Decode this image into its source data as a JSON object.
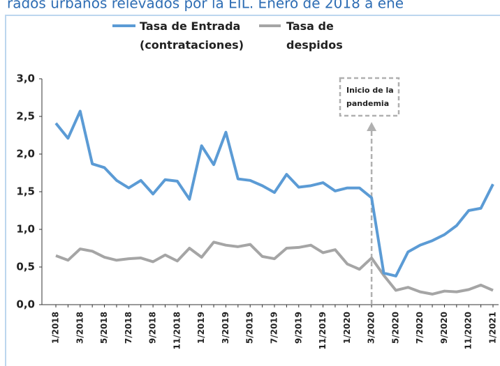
{
  "chart_data": {
    "type": "line",
    "title": "rados urbanos relevados por la EIL. Enero de 2018 a ene",
    "annotation": "Inicio de la pandemia",
    "categories": [
      "1/2018",
      null,
      "3/2018",
      null,
      "5/2018",
      null,
      "7/2018",
      null,
      "9/2018",
      null,
      "11/2018",
      null,
      "1/2019",
      null,
      "3/2019",
      null,
      "5/2019",
      null,
      "7/2019",
      null,
      "9/2019",
      null,
      "11/2019",
      null,
      "1/2020",
      null,
      "3/2020",
      null,
      "5/2020",
      null,
      "7/2020",
      null,
      "9/2020",
      null,
      "11/2020",
      null,
      "1/2021"
    ],
    "series": [
      {
        "name": "Tasa de Entrada (contrataciones)",
        "color": "#5b9bd5",
        "values": [
          2.41,
          2.21,
          2.57,
          1.87,
          1.82,
          1.65,
          1.55,
          1.65,
          1.47,
          1.66,
          1.64,
          1.4,
          2.11,
          1.86,
          2.29,
          1.67,
          1.65,
          1.58,
          1.49,
          1.73,
          1.56,
          1.58,
          1.62,
          1.51,
          1.55,
          1.55,
          1.42,
          0.42,
          0.38,
          0.7,
          0.79,
          0.85,
          0.93,
          1.05,
          1.25,
          1.28,
          1.6
        ]
      },
      {
        "name": "Tasa de despidos",
        "color": "#a5a5a5",
        "values": [
          0.65,
          0.59,
          0.74,
          0.71,
          0.63,
          0.59,
          0.61,
          0.62,
          0.57,
          0.66,
          0.58,
          0.75,
          0.63,
          0.83,
          0.79,
          0.77,
          0.8,
          0.64,
          0.61,
          0.75,
          0.76,
          0.79,
          0.69,
          0.73,
          0.54,
          0.47,
          0.62,
          0.39,
          0.19,
          0.23,
          0.17,
          0.14,
          0.18,
          0.17,
          0.2,
          0.26,
          0.19
        ]
      }
    ],
    "ylim": [
      0,
      3
    ],
    "yticks": [
      {
        "value": 0,
        "label": "0,0"
      },
      {
        "value": 0.5,
        "label": "0,5"
      },
      {
        "value": 1,
        "label": "1,0"
      },
      {
        "value": 1.5,
        "label": "1,5"
      },
      {
        "value": 2,
        "label": "2,0"
      },
      {
        "value": 2.5,
        "label": "2,5"
      },
      {
        "value": 3,
        "label": "3,0"
      }
    ],
    "grid": false
  }
}
